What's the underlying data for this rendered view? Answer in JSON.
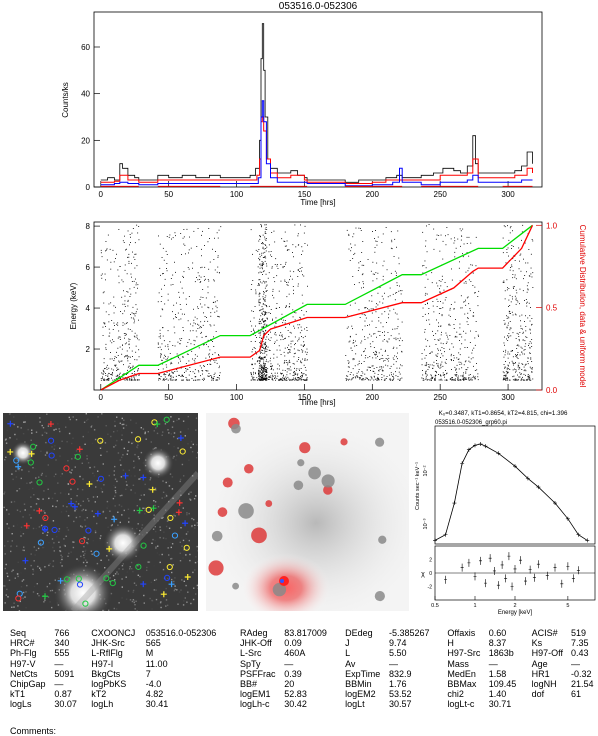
{
  "chart_data": [
    {
      "type": "line",
      "title": "053516.0-052306",
      "xlabel": "Time [hrs]",
      "ylabel": "Counts/ks",
      "xlim": [
        -5,
        325
      ],
      "ylim": [
        0,
        75
      ],
      "xticks": [
        0,
        50,
        100,
        150,
        200,
        250,
        300
      ],
      "yticks": [
        0,
        20,
        40,
        60
      ],
      "segments": [
        [
          0,
          28
        ],
        [
          42,
          88
        ],
        [
          110,
          152
        ],
        [
          180,
          222
        ],
        [
          236,
          278
        ],
        [
          296,
          318
        ]
      ],
      "series": [
        {
          "color": "#000000",
          "points": [
            [
              0,
              3
            ],
            [
              5,
              4
            ],
            [
              10,
              3
            ],
            [
              14,
              10
            ],
            [
              16,
              8
            ],
            [
              20,
              5
            ],
            [
              25,
              4
            ],
            [
              28,
              3
            ],
            [
              42,
              5
            ],
            [
              50,
              4
            ],
            [
              60,
              5
            ],
            [
              70,
              4
            ],
            [
              80,
              5
            ],
            [
              88,
              4
            ],
            [
              110,
              5
            ],
            [
              114,
              8
            ],
            [
              117,
              20
            ],
            [
              118,
              55
            ],
            [
              119,
              70
            ],
            [
              120,
              50
            ],
            [
              121,
              30
            ],
            [
              123,
              12
            ],
            [
              125,
              8
            ],
            [
              130,
              6
            ],
            [
              135,
              6
            ],
            [
              140,
              7
            ],
            [
              145,
              5
            ],
            [
              150,
              4
            ],
            [
              152,
              3
            ],
            [
              180,
              2
            ],
            [
              190,
              3
            ],
            [
              200,
              3
            ],
            [
              210,
              4
            ],
            [
              218,
              5
            ],
            [
              222,
              4
            ],
            [
              236,
              5
            ],
            [
              245,
              6
            ],
            [
              252,
              8
            ],
            [
              260,
              7
            ],
            [
              265,
              6
            ],
            [
              270,
              9
            ],
            [
              274,
              22
            ],
            [
              276,
              10
            ],
            [
              278,
              6
            ],
            [
              296,
              6
            ],
            [
              305,
              7
            ],
            [
              310,
              9
            ],
            [
              314,
              15
            ],
            [
              318,
              10
            ]
          ]
        },
        {
          "color": "#ff0000",
          "points": [
            [
              0,
              2
            ],
            [
              10,
              2.5
            ],
            [
              14,
              5
            ],
            [
              20,
              3
            ],
            [
              28,
              2
            ],
            [
              42,
              3
            ],
            [
              60,
              3
            ],
            [
              80,
              3
            ],
            [
              88,
              3
            ],
            [
              110,
              3
            ],
            [
              115,
              5
            ],
            [
              117,
              12
            ],
            [
              118,
              28
            ],
            [
              119,
              30
            ],
            [
              120,
              24
            ],
            [
              122,
              12
            ],
            [
              125,
              6
            ],
            [
              130,
              4
            ],
            [
              140,
              5
            ],
            [
              150,
              3
            ],
            [
              152,
              2
            ],
            [
              180,
              1.5
            ],
            [
              200,
              2
            ],
            [
              210,
              3
            ],
            [
              222,
              3
            ],
            [
              236,
              3
            ],
            [
              250,
              5
            ],
            [
              260,
              5
            ],
            [
              270,
              6
            ],
            [
              274,
              12
            ],
            [
              278,
              4
            ],
            [
              296,
              4
            ],
            [
              305,
              5
            ],
            [
              314,
              8
            ],
            [
              318,
              6
            ]
          ]
        },
        {
          "color": "#0000ff",
          "points": [
            [
              0,
              1
            ],
            [
              10,
              1.5
            ],
            [
              14,
              2
            ],
            [
              20,
              1.5
            ],
            [
              28,
              1
            ],
            [
              42,
              1.5
            ],
            [
              60,
              1.5
            ],
            [
              80,
              1.5
            ],
            [
              88,
              1.5
            ],
            [
              110,
              1.5
            ],
            [
              116,
              4
            ],
            [
              118,
              30
            ],
            [
              119,
              37
            ],
            [
              120,
              28
            ],
            [
              122,
              10
            ],
            [
              125,
              4
            ],
            [
              130,
              2
            ],
            [
              140,
              2
            ],
            [
              152,
              1.5
            ],
            [
              180,
              0.5
            ],
            [
              200,
              1
            ],
            [
              215,
              2
            ],
            [
              220,
              8
            ],
            [
              222,
              2
            ],
            [
              236,
              1
            ],
            [
              250,
              2
            ],
            [
              270,
              3
            ],
            [
              274,
              5
            ],
            [
              278,
              2
            ],
            [
              296,
              2
            ],
            [
              310,
              3
            ],
            [
              318,
              3
            ]
          ]
        }
      ]
    },
    {
      "type": "scatter",
      "xlabel": "Time [hrs]",
      "ylabel": "Energy (keV)",
      "y2label": "Cumulative Distribution, data & uniform model",
      "xlim": [
        -5,
        325
      ],
      "ylim": [
        0,
        8.2
      ],
      "y2lim": [
        0,
        1.02
      ],
      "xticks": [
        0,
        50,
        100,
        150,
        200,
        250,
        300
      ],
      "yticks": [
        2,
        4,
        6,
        8
      ],
      "y2ticks": [
        0.0,
        0.5,
        1.0
      ],
      "point_count": 5091,
      "cumulative_data": [
        [
          0,
          0
        ],
        [
          14,
          0.06
        ],
        [
          28,
          0.1
        ],
        [
          42,
          0.1
        ],
        [
          88,
          0.2
        ],
        [
          110,
          0.2
        ],
        [
          117,
          0.24
        ],
        [
          120,
          0.33
        ],
        [
          125,
          0.37
        ],
        [
          152,
          0.44
        ],
        [
          180,
          0.44
        ],
        [
          222,
          0.53
        ],
        [
          236,
          0.53
        ],
        [
          260,
          0.62
        ],
        [
          274,
          0.72
        ],
        [
          278,
          0.74
        ],
        [
          296,
          0.74
        ],
        [
          310,
          0.86
        ],
        [
          318,
          1.0
        ]
      ],
      "cumulative_model": [
        [
          0,
          0
        ],
        [
          28,
          0.15
        ],
        [
          42,
          0.15
        ],
        [
          88,
          0.33
        ],
        [
          110,
          0.33
        ],
        [
          152,
          0.52
        ],
        [
          180,
          0.52
        ],
        [
          222,
          0.7
        ],
        [
          236,
          0.7
        ],
        [
          278,
          0.86
        ],
        [
          296,
          0.86
        ],
        [
          318,
          1.0
        ]
      ],
      "colors": {
        "points": "#000000",
        "data_cdf": "#ff0000",
        "model_cdf": "#00dd00"
      }
    },
    {
      "type": "line",
      "title": "K₀=0.3487, kT1=0.8654, kT2=4.815, chi=1.396",
      "subtitle": "053516.0-052306_grp60.pi",
      "xlabel": "Energy [keV]",
      "ylabel": "Counts sec⁻¹ keV⁻¹",
      "residual_label": "χ",
      "x_scale": "log",
      "xlim": [
        0.5,
        8
      ],
      "xticks": [
        0.5,
        1,
        2,
        5
      ],
      "y_scale": "log",
      "ylim": [
        0.0005,
        0.2
      ],
      "yticks_labeled": [
        "10⁻²",
        "10⁻³"
      ],
      "residual_ylim": [
        -4,
        4
      ],
      "residual_yticks": [
        -2,
        0,
        2
      ],
      "model_spectrum": [
        [
          0.5,
          0.0006
        ],
        [
          0.6,
          0.0008
        ],
        [
          0.7,
          0.004
        ],
        [
          0.8,
          0.03
        ],
        [
          0.9,
          0.06
        ],
        [
          1.0,
          0.075
        ],
        [
          1.1,
          0.08
        ],
        [
          1.2,
          0.072
        ],
        [
          1.5,
          0.05
        ],
        [
          2.0,
          0.026
        ],
        [
          2.5,
          0.014
        ],
        [
          3.0,
          0.009
        ],
        [
          4.0,
          0.004
        ],
        [
          5.0,
          0.0018
        ],
        [
          6.0,
          0.0008
        ],
        [
          7.0,
          0.0006
        ]
      ],
      "residuals": [
        [
          0.6,
          -1
        ],
        [
          0.8,
          0.8
        ],
        [
          0.9,
          1.5
        ],
        [
          1.0,
          -0.5
        ],
        [
          1.1,
          1.8
        ],
        [
          1.2,
          -1.5
        ],
        [
          1.3,
          2.2
        ],
        [
          1.4,
          0.3
        ],
        [
          1.5,
          -1.8
        ],
        [
          1.6,
          1.2
        ],
        [
          1.7,
          -0.8
        ],
        [
          1.8,
          2.5
        ],
        [
          1.9,
          -2
        ],
        [
          2.0,
          0.6
        ],
        [
          2.2,
          1.9
        ],
        [
          2.4,
          -1.2
        ],
        [
          2.6,
          0.5
        ],
        [
          2.8,
          -0.7
        ],
        [
          3.0,
          1.3
        ],
        [
          3.5,
          -0.4
        ],
        [
          4.0,
          0.8
        ],
        [
          4.5,
          -1.6
        ],
        [
          5.0,
          1.0
        ],
        [
          5.5,
          -0.8
        ],
        [
          6.0,
          0.4
        ]
      ]
    }
  ],
  "images": {
    "left_panel": {
      "description_icon": "xray-field-image-with-source-markers"
    },
    "center_panel": {
      "description_icon": "smoothed-xray-image"
    }
  },
  "info": {
    "rows": [
      [
        "Seq",
        "766",
        "CXOONCJ",
        "053516.0-052306",
        "RAdeg",
        "83.817009",
        "DEdeg",
        "-5.385267",
        "Offaxis",
        "0.60",
        "ACIS#",
        "519"
      ],
      [
        "HRC#",
        "340",
        "JHK-Src",
        "565",
        "JHK-Off",
        "0.09",
        "J",
        "9.74",
        "H",
        "8.37",
        "Ks",
        "7.35"
      ],
      [
        "Ph-Flg",
        "555",
        "L-RflFlg",
        "M",
        "L-Src",
        "460A",
        "L",
        "5.50",
        "H97-Src",
        "1863b",
        "H97-Off",
        "0.43"
      ],
      [
        "H97-V",
        "—",
        "H97-I",
        "11.00",
        "SpTy",
        "—",
        "Av",
        "—",
        "Mass",
        "—",
        "Age",
        "—"
      ],
      [
        "NetCts",
        "5091",
        "BkgCts",
        "7",
        "PSFFrac",
        "0.39",
        "ExpTime",
        "832.9",
        "MedEn",
        "1.58",
        "HR1",
        "-0.32"
      ],
      [
        "ChipGap",
        "—",
        "logPbKS",
        "-4.0",
        "BB#",
        "20",
        "BBMin",
        "1.76",
        "BBMax",
        "109.45",
        "logNH",
        "21.54"
      ],
      [
        "kT1",
        "0.87",
        "kT2",
        "4.82",
        "logEM1",
        "52.83",
        "logEM2",
        "53.52",
        "chi2",
        "1.40",
        "dof",
        "61"
      ],
      [
        "logLs",
        "30.07",
        "logLh",
        "30.41",
        "logLh-c",
        "30.42",
        "logLt",
        "30.57",
        "logLt-c",
        "30.71",
        "",
        ""
      ]
    ],
    "comments_label": "Comments:"
  }
}
